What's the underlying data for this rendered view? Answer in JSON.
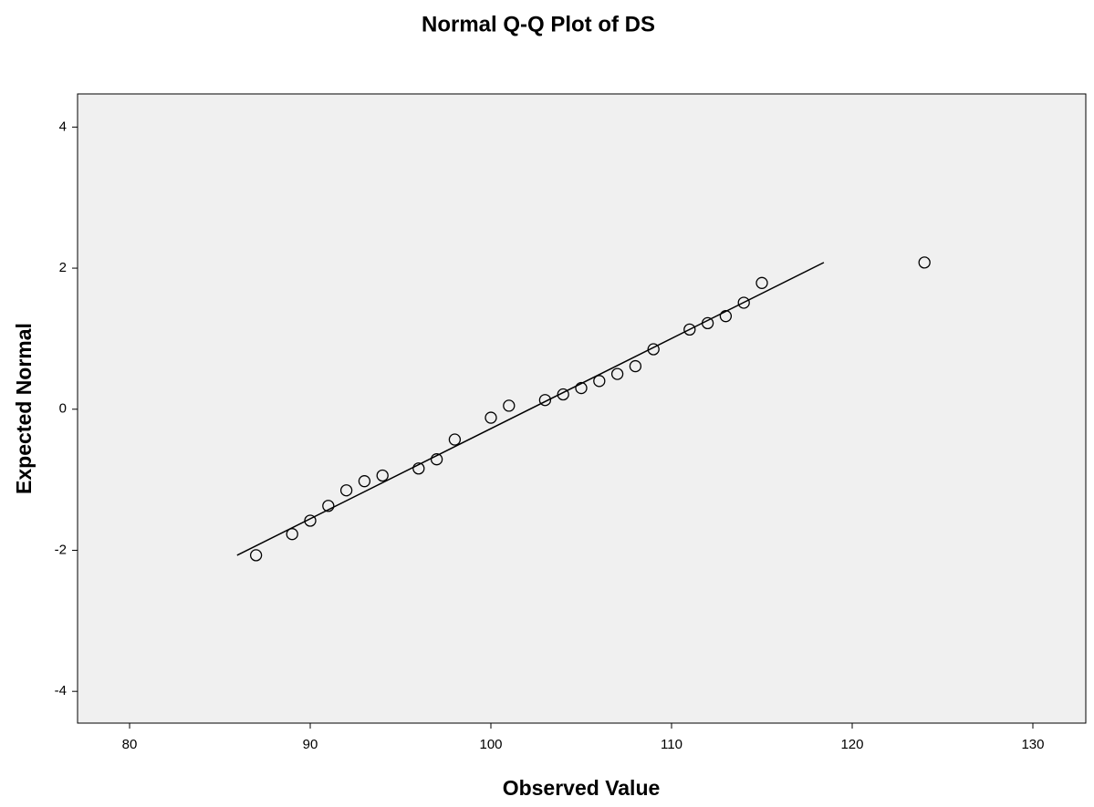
{
  "chart_data": {
    "type": "scatter",
    "title": "Normal Q-Q Plot of DS",
    "x_label": "Observed Value",
    "y_label": "Expected Normal",
    "xlim": [
      77.12,
      132.93
    ],
    "ylim": [
      -4.45,
      4.47
    ],
    "xticks": [
      80,
      90,
      100,
      110,
      120,
      130
    ],
    "yticks": [
      -4,
      -2,
      0,
      2,
      4
    ],
    "plot_background": "#f0f0f0",
    "color": "#000000",
    "x": [
      87,
      89,
      90,
      91,
      92,
      93,
      94,
      96,
      97,
      98,
      100,
      101,
      103,
      104,
      105,
      106,
      107,
      108,
      109,
      111,
      112,
      113,
      114,
      115,
      124
    ],
    "y": [
      -2.07,
      -1.77,
      -1.58,
      -1.37,
      -1.15,
      -1.02,
      -0.94,
      -0.84,
      -0.71,
      -0.43,
      -0.12,
      0.05,
      0.13,
      0.21,
      0.3,
      0.4,
      0.5,
      0.61,
      0.85,
      1.13,
      1.22,
      1.32,
      1.51,
      1.79,
      2.08
    ],
    "reference_line": {
      "x": [
        85.95,
        118.43
      ],
      "y": [
        -2.07,
        2.08
      ]
    }
  }
}
